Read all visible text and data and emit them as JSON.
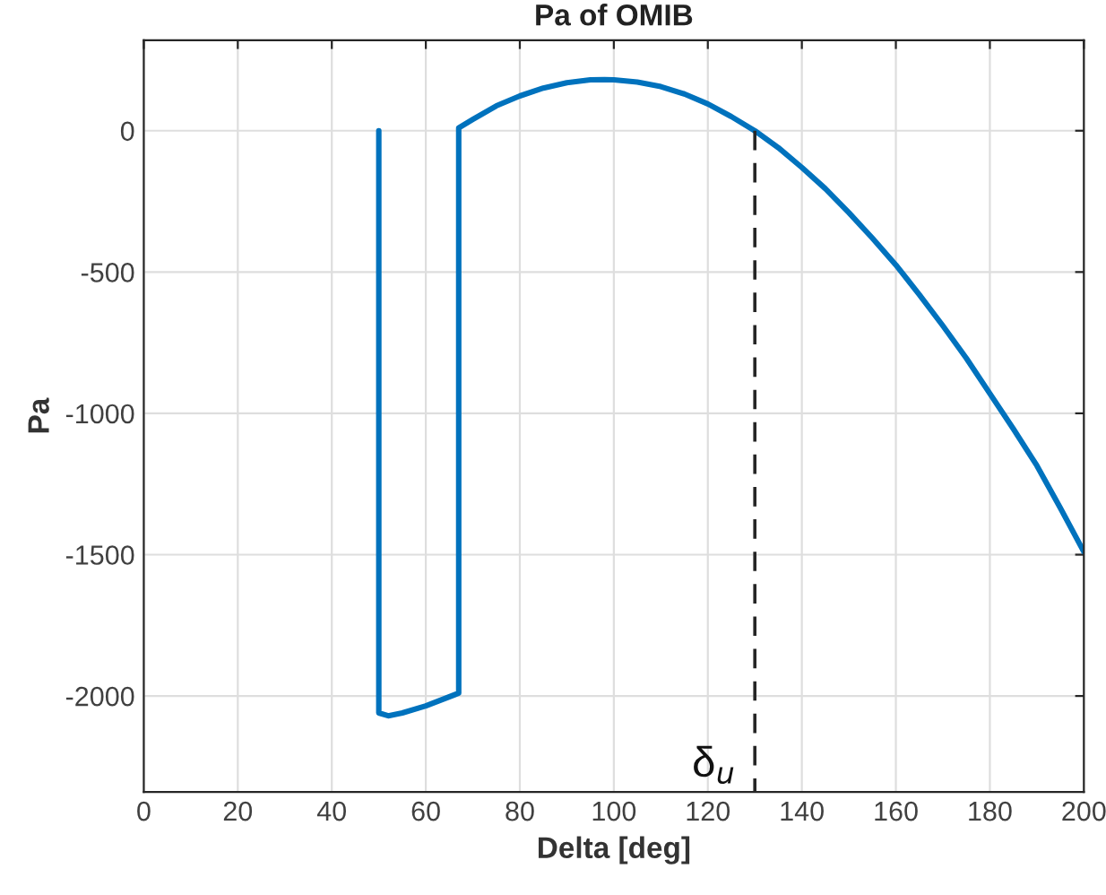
{
  "chart_data": {
    "type": "line",
    "title": "Pa of OMIB",
    "xlabel": "Delta [deg]",
    "ylabel": "Pa",
    "xlim": [
      0,
      200
    ],
    "xticks": [
      0,
      20,
      40,
      60,
      80,
      100,
      120,
      140,
      160,
      180,
      200
    ],
    "ylim": [
      -2340,
      320
    ],
    "yticks": [
      -2000,
      -1500,
      -1000,
      -500,
      0
    ],
    "grid": true,
    "series": [
      {
        "color": "#0072bd",
        "line_style": "solid",
        "x": [
          50,
          50,
          52,
          55,
          60,
          67,
          67,
          70,
          75,
          80,
          85,
          90,
          95,
          98,
          100,
          105,
          110,
          115,
          120,
          125,
          130,
          135,
          140,
          145,
          150,
          155,
          160,
          165,
          170,
          175,
          180,
          185,
          190,
          195,
          200
        ],
        "values": [
          0,
          -2060,
          -2070,
          -2060,
          -2035,
          -1990,
          10,
          40,
          88,
          123,
          151,
          170,
          180,
          181,
          180,
          172,
          156,
          130,
          95,
          50,
          0,
          -60,
          -130,
          -205,
          -290,
          -380,
          -475,
          -580,
          -690,
          -805,
          -930,
          -1055,
          -1185,
          -1335,
          -1490
        ]
      },
      {
        "color": "#262626",
        "line_style": "dashed",
        "x": [
          130,
          130
        ],
        "values": [
          0,
          -2340
        ]
      }
    ],
    "annotations": [
      "δ$_{u}$"
    ]
  }
}
